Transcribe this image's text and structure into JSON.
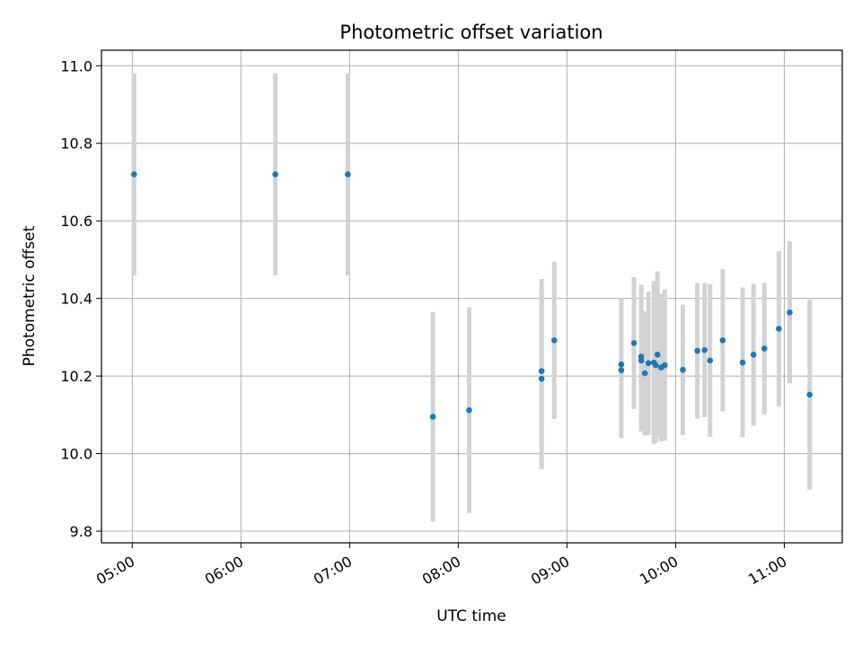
{
  "chart_data": {
    "type": "scatter",
    "title": "Photometric offset variation",
    "xlabel": "UTC time",
    "ylabel": "Photometric offset",
    "xlim": [
      "04:43",
      "11:32"
    ],
    "ylim": [
      9.77,
      11.04
    ],
    "x_ticks": [
      "05:00",
      "06:00",
      "07:00",
      "08:00",
      "09:00",
      "10:00",
      "11:00"
    ],
    "y_ticks": [
      "9.8",
      "10.0",
      "10.2",
      "10.4",
      "10.6",
      "10.8",
      "11.0"
    ],
    "grid": true,
    "point_color": "#1f77b4",
    "errorbar_color": "#d3d3d3",
    "points": [
      {
        "time": "05:01",
        "y": 10.72,
        "yerr": 0.26
      },
      {
        "time": "06:19",
        "y": 10.72,
        "yerr": 0.26
      },
      {
        "time": "06:59",
        "y": 10.72,
        "yerr": 0.26
      },
      {
        "time": "07:46",
        "y": 10.095,
        "yerr": 0.27
      },
      {
        "time": "08:06",
        "y": 10.112,
        "yerr": 0.265
      },
      {
        "time": "08:46",
        "y": 10.213,
        "yerr": 0.237
      },
      {
        "time": "08:46",
        "y": 10.193,
        "yerr": 0.233
      },
      {
        "time": "08:53",
        "y": 10.292,
        "yerr": 0.203
      },
      {
        "time": "09:30",
        "y": 10.23,
        "yerr": 0.17
      },
      {
        "time": "09:30",
        "y": 10.215,
        "yerr": 0.175
      },
      {
        "time": "09:37",
        "y": 10.285,
        "yerr": 0.17
      },
      {
        "time": "09:41",
        "y": 10.25,
        "yerr": 0.185
      },
      {
        "time": "09:41",
        "y": 10.24,
        "yerr": 0.183
      },
      {
        "time": "09:43",
        "y": 10.207,
        "yerr": 0.16
      },
      {
        "time": "09:45",
        "y": 10.233,
        "yerr": 0.185
      },
      {
        "time": "09:48",
        "y": 10.235,
        "yerr": 0.21
      },
      {
        "time": "09:49",
        "y": 10.228,
        "yerr": 0.2
      },
      {
        "time": "09:50",
        "y": 10.255,
        "yerr": 0.215
      },
      {
        "time": "09:52",
        "y": 10.222,
        "yerr": 0.19
      },
      {
        "time": "09:54",
        "y": 10.228,
        "yerr": 0.195
      },
      {
        "time": "10:04",
        "y": 10.216,
        "yerr": 0.168
      },
      {
        "time": "10:12",
        "y": 10.265,
        "yerr": 0.175
      },
      {
        "time": "10:16",
        "y": 10.267,
        "yerr": 0.173
      },
      {
        "time": "10:19",
        "y": 10.24,
        "yerr": 0.197
      },
      {
        "time": "10:26",
        "y": 10.292,
        "yerr": 0.183
      },
      {
        "time": "10:37",
        "y": 10.235,
        "yerr": 0.193
      },
      {
        "time": "10:43",
        "y": 10.255,
        "yerr": 0.183
      },
      {
        "time": "10:49",
        "y": 10.271,
        "yerr": 0.17
      },
      {
        "time": "10:57",
        "y": 10.322,
        "yerr": 0.2
      },
      {
        "time": "11:03",
        "y": 10.364,
        "yerr": 0.183
      },
      {
        "time": "11:14",
        "y": 10.152,
        "yerr": 0.245
      }
    ]
  }
}
